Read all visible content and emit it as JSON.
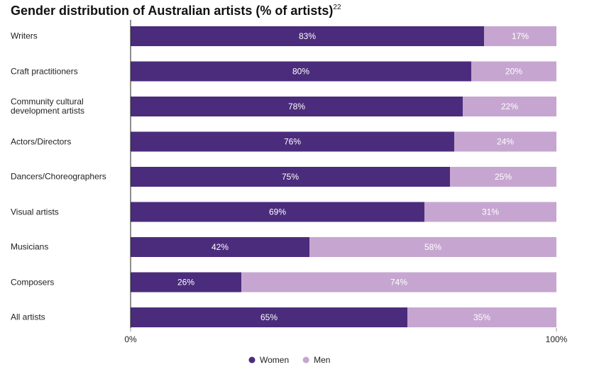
{
  "chart_data": {
    "type": "stacked-bar-horizontal",
    "title": "Gender distribution of Australian artists (% of artists)",
    "title_superscript": "22",
    "categories": [
      "Writers",
      "Craft practitioners",
      "Community cultural development artists",
      "Actors/Directors",
      "Dancers/Choreographers",
      "Visual artists",
      "Musicians",
      "Composers",
      "All artists"
    ],
    "series": [
      {
        "name": "Women",
        "color": "#4b2c7c",
        "values": [
          83,
          80,
          78,
          76,
          75,
          69,
          42,
          26,
          65
        ],
        "value_labels": [
          "83%",
          "80%",
          "78%",
          "76%",
          "75%",
          "69%",
          "42%",
          "26%",
          "65%"
        ]
      },
      {
        "name": "Men",
        "color": "#c6a6d0",
        "values": [
          17,
          20,
          22,
          24,
          25,
          31,
          58,
          74,
          35
        ],
        "value_labels": [
          "17%",
          "20%",
          "22%",
          "24%",
          "25%",
          "31%",
          "58%",
          "74%",
          "35%"
        ]
      }
    ],
    "xlim": [
      0,
      100
    ],
    "xticks": [
      {
        "value": 0,
        "label": "0%"
      },
      {
        "value": 100,
        "label": "100%"
      }
    ],
    "legend": "bottom"
  }
}
